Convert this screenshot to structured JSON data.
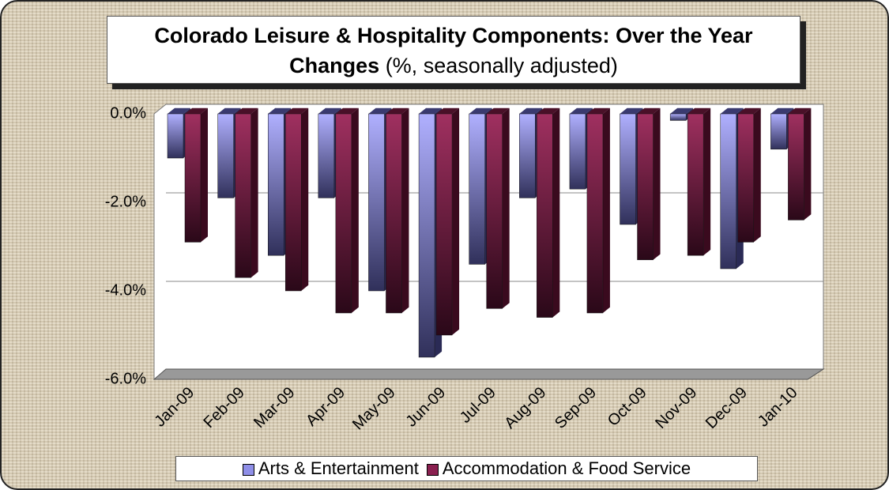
{
  "chart_data": {
    "type": "bar3d",
    "title": "Colorado Leisure & Hospitality Components: Over the Year  Changes",
    "subtitle": "(%, seasonally adjusted)",
    "categories": [
      "Jan-09",
      "Feb-09",
      "Mar-09",
      "Apr-09",
      "May-09",
      "Jun-09",
      "Jul-09",
      "Aug-09",
      "Sep-09",
      "Oct-09",
      "Nov-09",
      "Dec-09",
      "Jan-10"
    ],
    "series": [
      {
        "name": "Arts & Entertainment",
        "color": "#8f8fe8",
        "values": [
          -1.0,
          -1.9,
          -3.2,
          -1.9,
          -4.0,
          -5.5,
          -3.4,
          -1.9,
          -1.7,
          -2.5,
          -0.15,
          -3.5,
          -0.8
        ]
      },
      {
        "name": "Accommodation & Food Service",
        "color": "#8a2050",
        "values": [
          -2.9,
          -3.7,
          -4.0,
          -4.5,
          -4.5,
          -5.0,
          -4.4,
          -4.6,
          -4.5,
          -3.3,
          -3.2,
          -2.9,
          -2.4
        ]
      }
    ],
    "ylim": [
      -6,
      0
    ],
    "yticks": [
      {
        "value": 0,
        "label": "0.0%"
      },
      {
        "value": -2,
        "label": "-2.0%"
      },
      {
        "value": -4,
        "label": "-4.0%"
      },
      {
        "value": -6,
        "label": "-6.0%"
      }
    ],
    "grid": true
  }
}
